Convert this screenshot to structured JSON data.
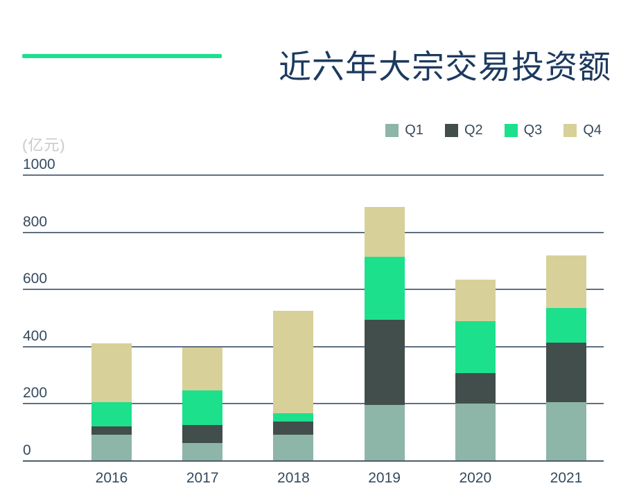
{
  "title": "近六年大宗交易投资额",
  "unit_label": "(亿元)",
  "colors": {
    "accent_line": "#1fdf8e",
    "title_text": "#1d3a5f",
    "axis_text": "#334a5e",
    "muted_text": "#c6cbce",
    "gridline": "#5d7080",
    "axis_line": "#4c5d68"
  },
  "chart_data": {
    "type": "bar",
    "stacked": true,
    "title": "近六年大宗交易投资额",
    "ylabel": "(亿元)",
    "xlabel": "",
    "ylim": [
      0,
      1000
    ],
    "yticks": [
      0,
      200,
      400,
      600,
      800,
      1000
    ],
    "grid": true,
    "legend_position": "top-right",
    "categories": [
      "2016",
      "2017",
      "2018",
      "2019",
      "2020",
      "2021"
    ],
    "series": [
      {
        "name": "Q1",
        "color": "#8db5a8",
        "values": [
          93,
          64,
          93,
          195,
          200,
          205
        ]
      },
      {
        "name": "Q2",
        "color": "#414e4b",
        "values": [
          27,
          61,
          46,
          300,
          107,
          208
        ]
      },
      {
        "name": "Q3",
        "color": "#1ce08c",
        "values": [
          87,
          123,
          28,
          219,
          181,
          122
        ]
      },
      {
        "name": "Q4",
        "color": "#d8d099",
        "values": [
          204,
          150,
          358,
          174,
          147,
          183
        ]
      }
    ],
    "totals": [
      411,
      398,
      525,
      888,
      635,
      718
    ]
  }
}
